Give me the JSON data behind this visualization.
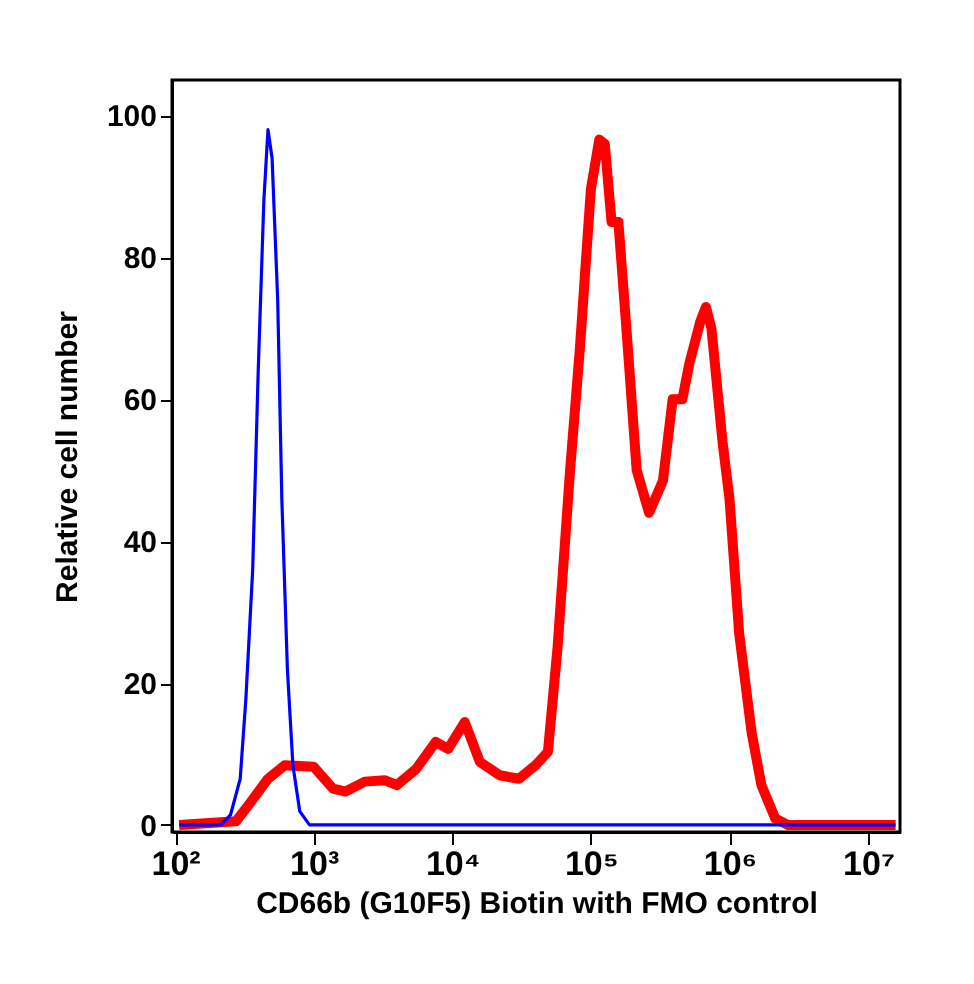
{
  "chart_data": {
    "type": "line",
    "xlabel": "CD66b (G10F5) Biotin with FMO control",
    "ylabel": "Relative cell number",
    "log": "x",
    "grid": false,
    "line_style": "solid",
    "marker": "none",
    "xlim": [
      95,
      17000000
    ],
    "ylim": [
      -1,
      105
    ],
    "xticks": [
      {
        "value": 100,
        "label": "10²"
      },
      {
        "value": 1000,
        "label": "10³"
      },
      {
        "value": 10000,
        "label": "10⁴"
      },
      {
        "value": 100000,
        "label": "10⁵"
      },
      {
        "value": 1000000,
        "label": "10⁶"
      },
      {
        "value": 10000000,
        "label": "10⁷"
      }
    ],
    "yticks": [
      0,
      20,
      40,
      60,
      80,
      100
    ],
    "series": [
      {
        "color": "#ff0000",
        "x": [
          107,
          275,
          339,
          468,
          617,
          1000,
          1380,
          1700,
          2340,
          3240,
          3980,
          5500,
          7590,
          9330,
          12300,
          15800,
          21900,
          30200,
          39800,
          49000,
          57500,
          70800,
          83200,
          100000,
          115000,
          126000,
          141000,
          158000,
          182000,
          214000,
          263000,
          331000,
          389000,
          457000,
          513000,
          617000,
          676000,
          741000,
          891000,
          1000000,
          1175000,
          1445000,
          1700000,
          2140000,
          2630000,
          15800000
        ],
        "values": [
          0,
          0.5,
          2.8,
          6.5,
          8.4,
          8.2,
          5.1,
          4.7,
          6.1,
          6.3,
          5.6,
          7.9,
          11.7,
          10.7,
          14.5,
          8.9,
          7.0,
          6.5,
          8.4,
          10.3,
          25,
          50,
          67,
          89.6,
          96.6,
          96,
          85,
          85,
          69,
          50,
          44,
          48.5,
          60,
          60,
          65,
          71,
          73,
          70,
          54,
          46,
          27,
          13,
          5.6,
          0.9,
          0,
          0
        ]
      },
      {
        "color": "#0000ff",
        "x": [
          107,
          214,
          251,
          295,
          324,
          363,
          398,
          437,
          468,
          501,
          550,
          589,
          646,
          708,
          794,
          933,
          15800000
        ],
        "values": [
          0,
          0,
          1.4,
          6.5,
          17.7,
          36,
          64,
          88,
          98,
          94,
          74,
          46,
          22,
          8.4,
          1.9,
          0,
          0
        ]
      }
    ]
  }
}
